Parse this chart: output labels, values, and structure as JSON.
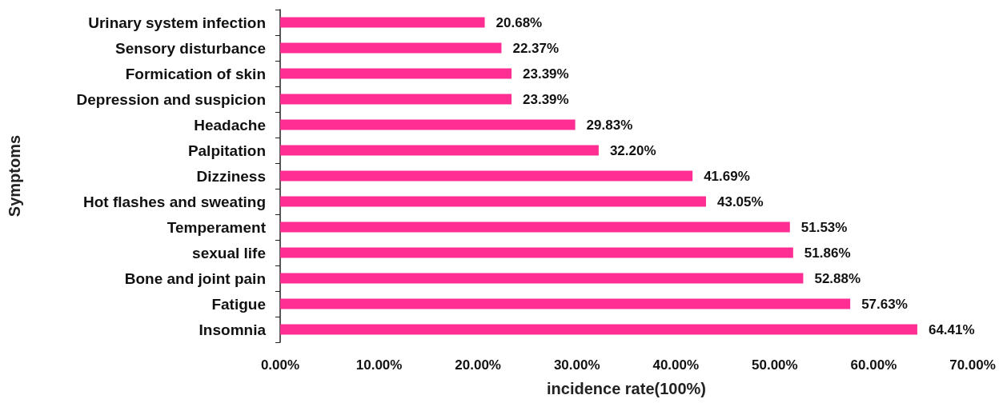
{
  "chart_data": {
    "type": "bar",
    "orientation": "horizontal",
    "xlabel": "incidence rate(100%)",
    "ylabel": "Symptoms",
    "categories": [
      "Urinary system infection",
      "Sensory disturbance",
      "Formication of skin",
      "Depression and suspicion",
      "Headache",
      "Palpitation",
      "Dizziness",
      "Hot flashes and sweating",
      "Temperament",
      "sexual life",
      "Bone and joint pain",
      "Fatigue",
      "Insomnia"
    ],
    "values": [
      20.68,
      22.37,
      23.39,
      23.39,
      29.83,
      32.2,
      41.69,
      43.05,
      51.53,
      51.86,
      52.88,
      57.63,
      64.41
    ],
    "value_labels": [
      "20.68%",
      "22.37%",
      "23.39%",
      "23.39%",
      "29.83%",
      "32.20%",
      "41.69%",
      "43.05%",
      "51.53%",
      "51.86%",
      "52.88%",
      "57.63%",
      "64.41%"
    ],
    "color": "#ff2e93",
    "xlim": [
      0,
      70
    ],
    "xticks": [
      {
        "value": 0,
        "label": "0.00%"
      },
      {
        "value": 10,
        "label": "10.00%"
      },
      {
        "value": 20,
        "label": "20.00%"
      },
      {
        "value": 30,
        "label": "30.00%"
      },
      {
        "value": 40,
        "label": "40.00%"
      },
      {
        "value": 50,
        "label": "50.00%"
      },
      {
        "value": 60,
        "label": "60.00%"
      },
      {
        "value": 70,
        "label": "70.00%"
      }
    ],
    "grid": false
  }
}
